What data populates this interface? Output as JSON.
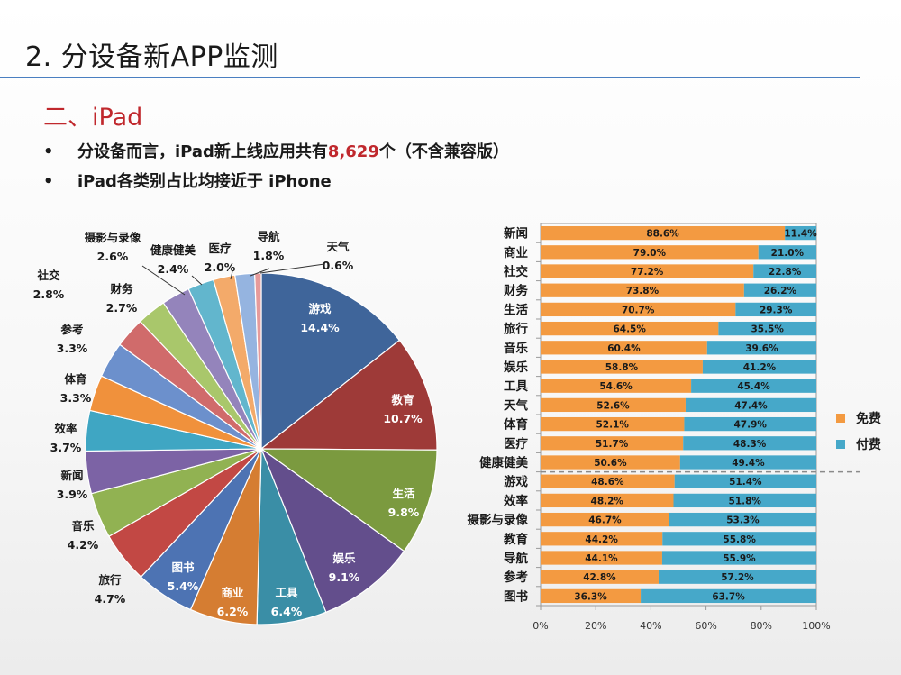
{
  "slide": {
    "title": "2. 分设备新APP监测",
    "section": "二、iPad",
    "bullets": [
      {
        "pre": "分设备而言，iPad新上线应用共有",
        "num": "8,629",
        "post": "个（不含兼容版）"
      },
      {
        "text": "iPad各类别占比均接近于 iPhone"
      }
    ]
  },
  "chart_data": [
    {
      "type": "pie",
      "categories": [
        "游戏",
        "教育",
        "生活",
        "娱乐",
        "工具",
        "商业",
        "图书",
        "旅行",
        "音乐",
        "新闻",
        "效率",
        "体育",
        "参考",
        "社交",
        "财务",
        "摄影与录像",
        "健康健美",
        "医疗",
        "导航",
        "天气"
      ],
      "values": [
        14.4,
        10.7,
        9.8,
        9.1,
        6.4,
        6.2,
        5.4,
        4.7,
        4.2,
        3.9,
        3.7,
        3.3,
        3.3,
        2.8,
        2.7,
        2.6,
        2.4,
        2.0,
        1.8,
        0.6
      ],
      "labels": [
        "14.4%",
        "10.7%",
        "9.8%",
        "9.1%",
        "6.4%",
        "6.2%",
        "5.4%",
        "4.7%",
        "4.2%",
        "3.9%",
        "3.7%",
        "3.3%",
        "3.3%",
        "2.8%",
        "2.7%",
        "2.6%",
        "2.4%",
        "2.0%",
        "1.8%",
        "0.6%"
      ],
      "colors": [
        "#3f659a",
        "#9e3a38",
        "#7b9a3f",
        "#634e8c",
        "#3a8ea6",
        "#d57d32",
        "#4d73b3",
        "#c24844",
        "#91b252",
        "#7c63a5",
        "#3fa6c3",
        "#f0913c",
        "#6c90cc",
        "#d06b6b",
        "#a9c76b",
        "#9484bb",
        "#62b6cd",
        "#f3aa6a",
        "#95b4e0",
        "#e69b9b"
      ]
    },
    {
      "type": "bar",
      "stacked": true,
      "orientation": "horizontal",
      "categories": [
        "新闻",
        "商业",
        "社交",
        "财务",
        "生活",
        "旅行",
        "音乐",
        "娱乐",
        "工具",
        "天气",
        "体育",
        "医疗",
        "健康健美",
        "游戏",
        "效率",
        "摄影与录像",
        "教育",
        "导航",
        "参考",
        "图书"
      ],
      "series": [
        {
          "name": "免费",
          "color": "#f39a41",
          "values": [
            88.6,
            79.0,
            77.2,
            73.8,
            70.7,
            64.5,
            60.4,
            58.8,
            54.6,
            52.6,
            52.1,
            51.7,
            50.6,
            48.6,
            48.2,
            46.7,
            44.2,
            44.1,
            42.8,
            36.3
          ],
          "labels": [
            "88.6%",
            "79.0%",
            "77.2%",
            "73.8%",
            "70.7%",
            "64.5%",
            "60.4%",
            "58.8%",
            "54.6%",
            "52.6%",
            "52.1%",
            "51.7%",
            "50.6%",
            "48.6%",
            "48.2%",
            "46.7%",
            "44.2%",
            "44.1%",
            "42.8%",
            "36.3%"
          ]
        },
        {
          "name": "付费",
          "color": "#46a8c9",
          "values": [
            11.4,
            21.0,
            22.8,
            26.2,
            29.3,
            35.5,
            39.6,
            41.2,
            45.4,
            47.4,
            47.9,
            48.3,
            49.4,
            51.4,
            51.8,
            53.3,
            55.8,
            55.9,
            57.2,
            63.7
          ],
          "labels": [
            "11.4%",
            "21.0%",
            "22.8%",
            "26.2%",
            "29.3%",
            "35.5%",
            "39.6%",
            "41.2%",
            "45.4%",
            "47.4%",
            "47.9%",
            "48.3%",
            "49.4%",
            "51.4%",
            "51.8%",
            "53.3%",
            "55.8%",
            "55.9%",
            "57.2%",
            "63.7%"
          ]
        }
      ],
      "xlim": [
        0,
        100
      ],
      "x_ticks": [
        "0%",
        "20%",
        "40%",
        "60%",
        "80%",
        "100%"
      ],
      "legend_position": "right"
    }
  ]
}
